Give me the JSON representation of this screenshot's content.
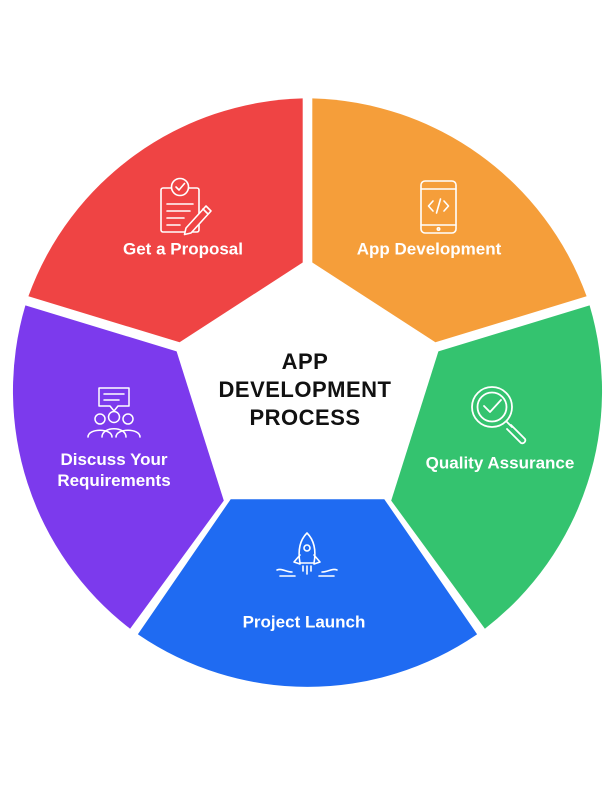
{
  "center": {
    "title_lines": [
      "APP",
      "DEVELOPMENT",
      "PROCESS"
    ]
  },
  "segments": [
    {
      "label": "Get a Proposal",
      "icon": "proposal-document-icon",
      "color": "#EF4444"
    },
    {
      "label": "App Development",
      "icon": "mobile-code-icon",
      "color": "#F59E3A"
    },
    {
      "label": "Quality Assurance",
      "icon": "magnifier-check-icon",
      "color": "#34C36F"
    },
    {
      "label": "Project Launch",
      "icon": "rocket-icon",
      "color": "#1F6BF2"
    },
    {
      "label_lines": [
        "Discuss Your",
        "Requirements"
      ],
      "icon": "team-discussion-icon",
      "color": "#7C3AED"
    }
  ]
}
